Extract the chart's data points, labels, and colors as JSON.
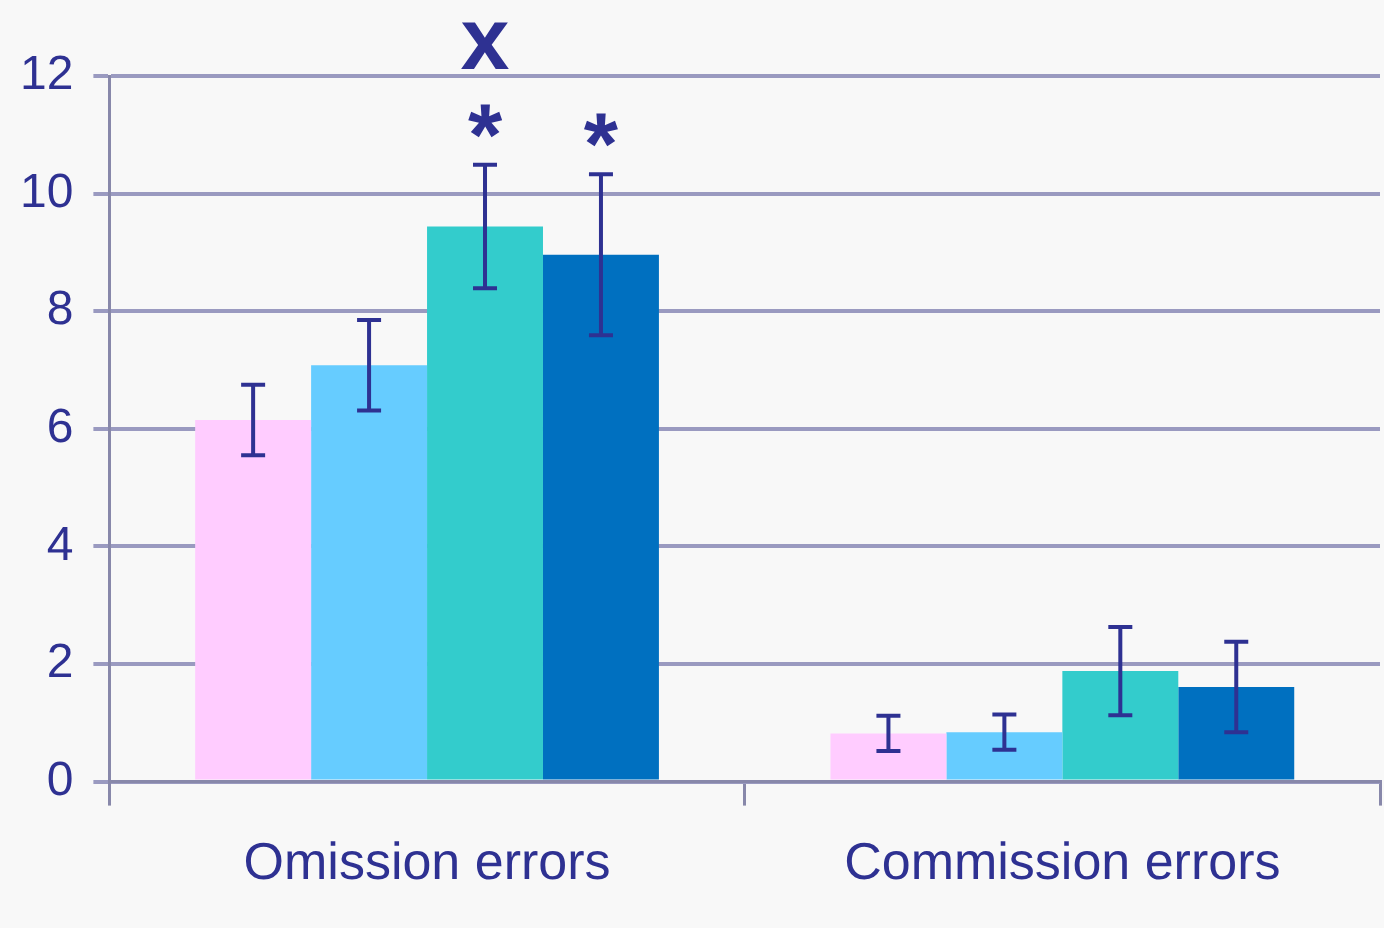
{
  "chart_data": {
    "type": "bar",
    "categories": [
      "Omission errors",
      "Commission errors"
    ],
    "series": [
      {
        "color": "#ffccff",
        "values": [
          6.15,
          0.82
        ],
        "errors": [
          0.6,
          0.3
        ]
      },
      {
        "color": "#66ccff",
        "values": [
          7.08,
          0.84
        ],
        "errors": [
          0.77,
          0.3
        ]
      },
      {
        "color": "#33cccc",
        "values": [
          9.44,
          1.88
        ],
        "errors": [
          1.05,
          0.75
        ]
      },
      {
        "color": "#0070c0",
        "values": [
          8.96,
          1.61
        ],
        "errors": [
          1.37,
          0.77
        ]
      }
    ],
    "ylim": [
      0,
      12
    ],
    "yticks": [
      0,
      2,
      4,
      6,
      8,
      10,
      12
    ],
    "grid": "y",
    "legend": false,
    "annotations": [
      {
        "text": "*",
        "x": "Omission errors",
        "y": 9.44
      },
      {
        "text": "x",
        "x": "Omission errors",
        "y": 9.44
      },
      {
        "text": "*",
        "x": "Omission errors",
        "y": 8.96
      }
    ]
  }
}
